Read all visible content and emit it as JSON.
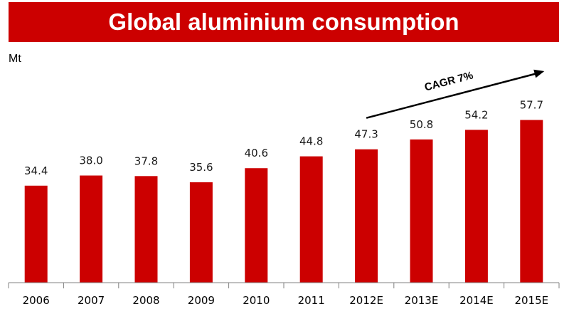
{
  "page": {
    "title": "Global aluminium consumption"
  },
  "chart_data": {
    "type": "bar",
    "title": "Global aluminium consumption",
    "ylabel": "Mt",
    "xlabel": "",
    "categories": [
      "2006",
      "2007",
      "2008",
      "2009",
      "2010",
      "2011",
      "2012E",
      "2013E",
      "2014E",
      "2015E"
    ],
    "values": [
      34.4,
      38.0,
      37.8,
      35.6,
      40.6,
      44.8,
      47.3,
      50.8,
      54.2,
      57.7
    ],
    "value_labels": [
      "34.4",
      "38.0",
      "37.8",
      "35.6",
      "40.6",
      "44.8",
      "47.3",
      "50.8",
      "54.2",
      "57.7"
    ],
    "ylim": [
      0,
      100
    ],
    "grid": false,
    "legend": "none",
    "bar_color": "#cc0000",
    "annotation": {
      "text": "CAGR 7%",
      "from_category": "2012E",
      "to_category": "2015E"
    }
  }
}
